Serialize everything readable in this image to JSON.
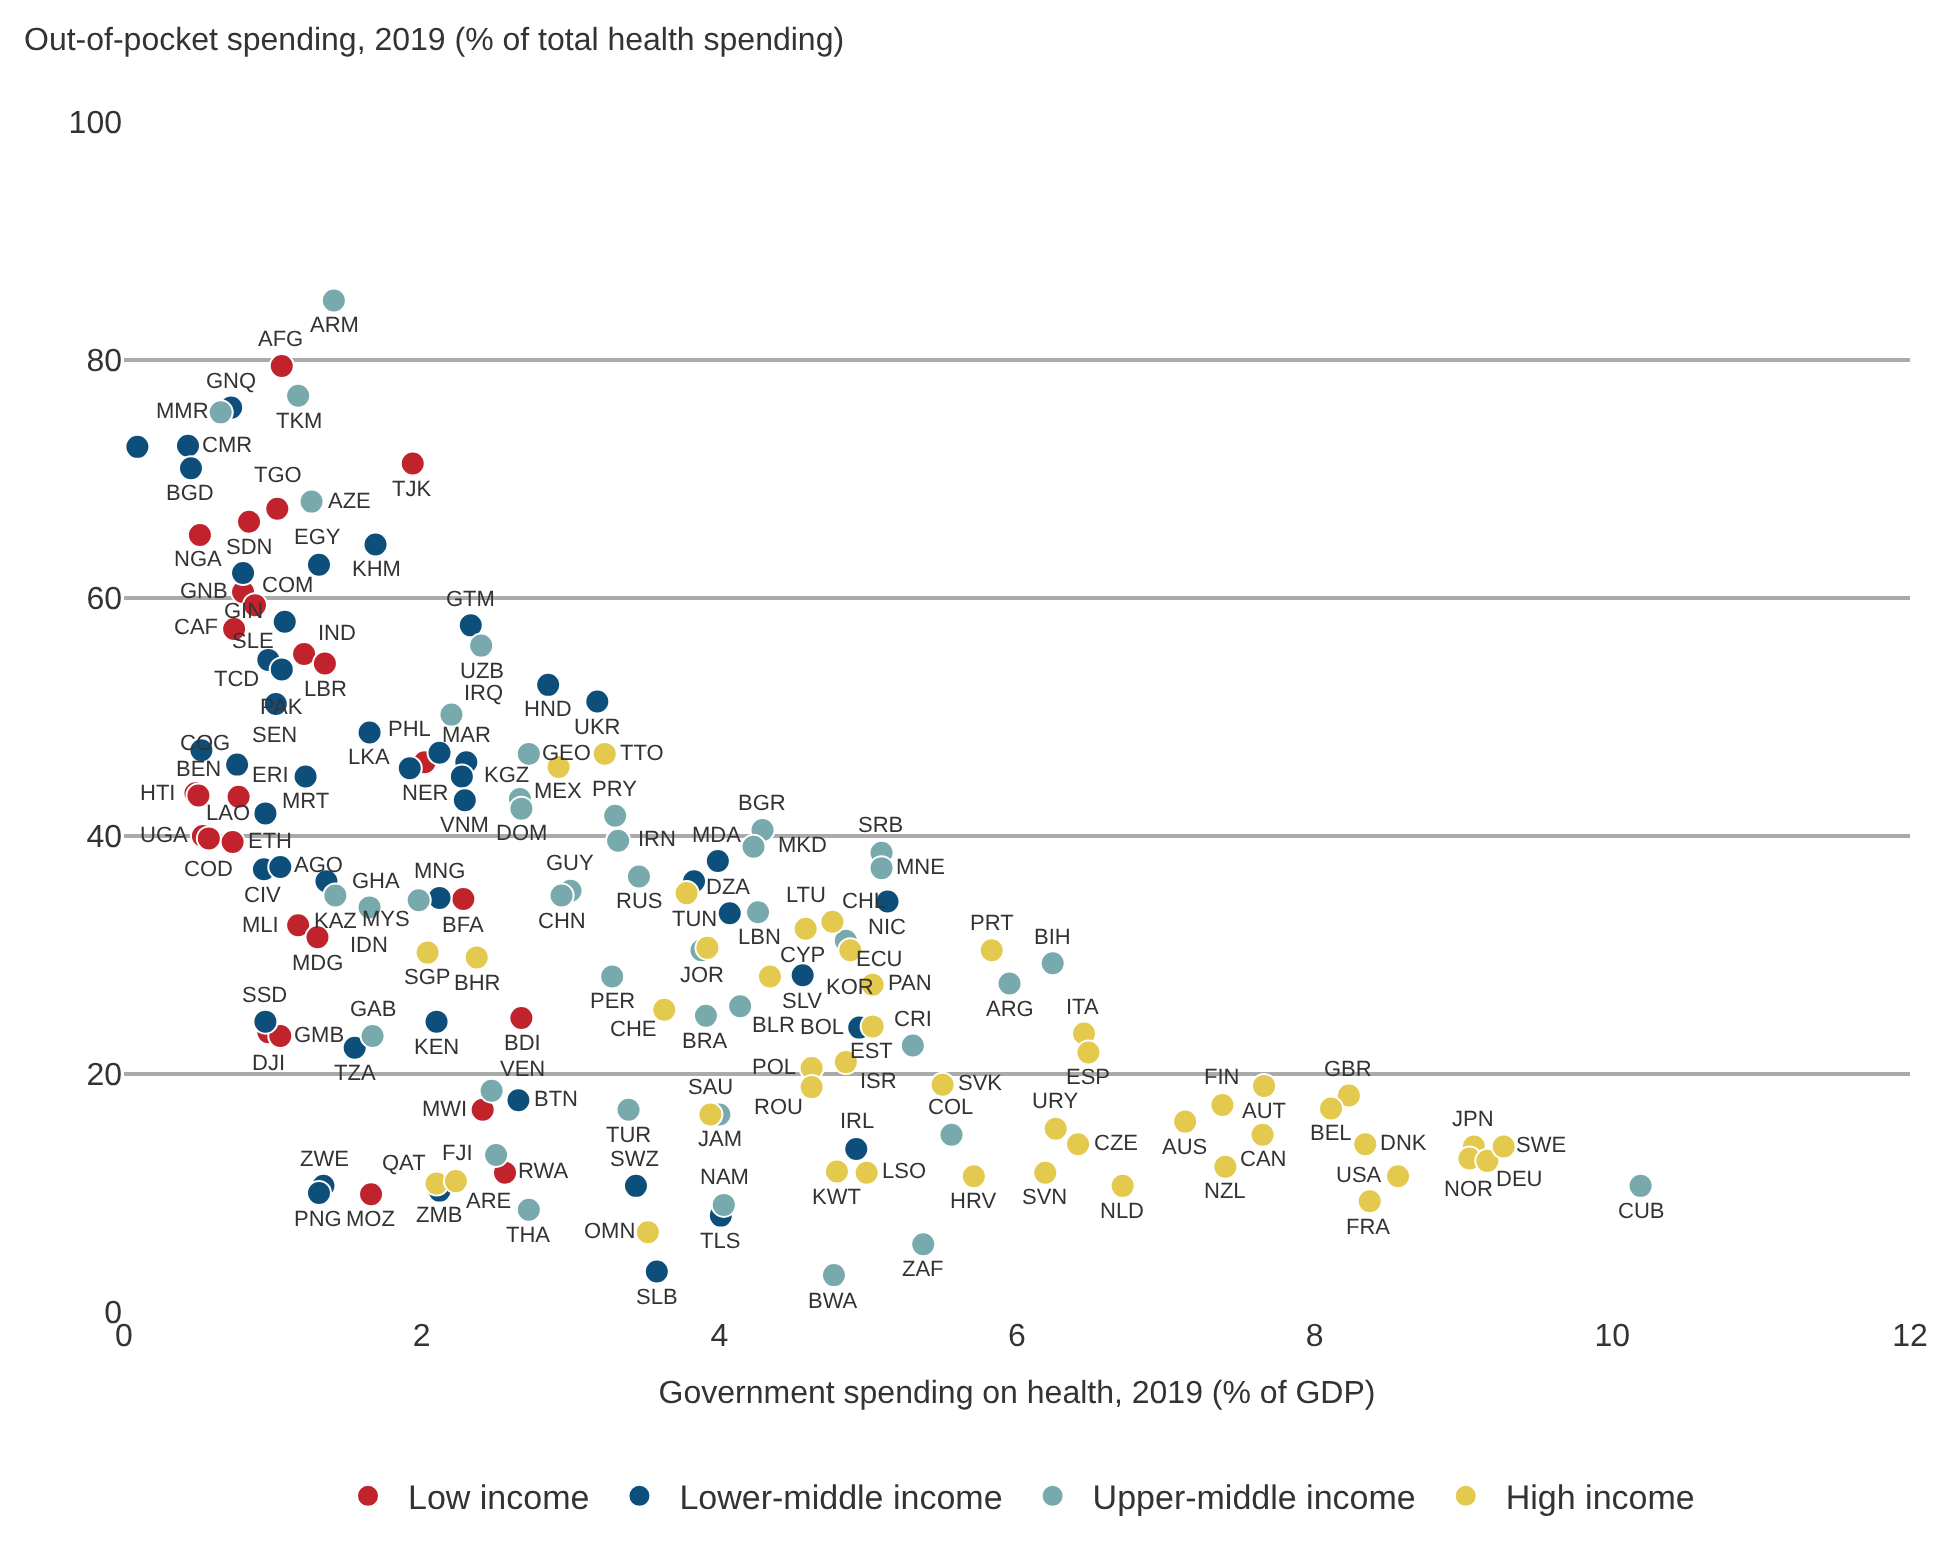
{
  "chart_data": {
    "type": "scatter",
    "ylabel": "Out-of-pocket spending, 2019 (% of total health spending)",
    "xlabel": "Government spending on health, 2019 (% of GDP)",
    "xlim": [
      0,
      12
    ],
    "ylim": [
      0,
      100
    ],
    "xticks": [
      0,
      2,
      4,
      6,
      8,
      10,
      12
    ],
    "yticks": [
      0,
      20,
      40,
      60,
      80,
      100
    ],
    "grid": "y",
    "legend": "bottom",
    "marker": "circle",
    "series": [
      {
        "name": "Low income",
        "color": "#c0232c",
        "x": [
          1.06,
          1.94,
          1.03,
          0.84,
          0.51,
          0.8,
          0.88,
          0.74,
          1.21,
          1.35,
          2.02,
          0.48,
          0.5,
          0.77,
          0.53,
          0.57,
          0.73,
          1.17,
          1.3,
          2.28,
          0.97,
          1.05,
          2.67,
          2.41,
          2.56,
          1.66
        ],
        "values": [
          79.5,
          71.3,
          67.5,
          66.4,
          65.3,
          60.5,
          59.4,
          57.4,
          55.3,
          54.5,
          46.2,
          43.6,
          43.4,
          43.3,
          40.0,
          39.8,
          39.5,
          32.5,
          31.5,
          34.7,
          23.5,
          23.2,
          24.7,
          17.0,
          11.7,
          9.9
        ],
        "value_labels": [
          "AFG",
          "TJK",
          "TGO",
          "SDN",
          "NGA",
          "GNB",
          "COM",
          "CAF",
          "IND",
          "LBR",
          "NER",
          "HTI",
          "BEN",
          "ERI",
          "UGA",
          "COD",
          "ETH",
          "MLI",
          "MDG",
          "BFA",
          "DJI",
          "GMB",
          "BDI",
          "MWI",
          "RWA",
          "MOZ"
        ]
      },
      {
        "name": "Lower-middle income",
        "color": "#0d4f7a",
        "x": [
          0.72,
          0.43,
          0.09,
          0.45,
          1.69,
          1.31,
          0.8,
          1.08,
          2.33,
          0.97,
          1.06,
          1.02,
          2.85,
          3.18,
          0.52,
          0.76,
          1.22,
          0.95,
          1.65,
          1.92,
          2.12,
          2.3,
          2.27,
          2.29,
          0.94,
          1.05,
          1.36,
          2.12,
          0.95,
          1.55,
          2.1,
          2.65,
          1.34,
          1.31,
          2.12,
          3.44,
          3.58,
          4.01,
          3.99,
          3.83,
          4.07,
          4.56,
          4.94,
          5.13,
          4.92
        ],
        "values": [
          76.0,
          72.8,
          72.7,
          70.9,
          64.5,
          62.8,
          62.1,
          58.0,
          57.7,
          54.8,
          54.0,
          51.1,
          52.7,
          51.3,
          47.2,
          46.0,
          45.0,
          41.9,
          48.7,
          45.7,
          47.0,
          46.2,
          45.0,
          43.0,
          37.2,
          37.4,
          36.2,
          34.8,
          24.4,
          22.2,
          24.4,
          17.8,
          10.6,
          10.0,
          10.2,
          10.6,
          3.4,
          8.1,
          37.9,
          36.2,
          33.5,
          28.3,
          23.9,
          34.5,
          13.7
        ],
        "value_labels": [
          "GNQ",
          "CMR",
          null,
          "BGD",
          "KHM",
          "EGY",
          "GIN",
          "SLE",
          "GTM",
          "TCD",
          "PAK",
          "SEN",
          "HND",
          "UKR",
          null,
          "COG",
          "MRT",
          "LAO",
          "LKA",
          "PHL",
          null,
          "MAR",
          "KGZ",
          "VNM",
          "CIV",
          "AGO",
          "GHA",
          "MNG",
          "SSD",
          "TZA",
          "KEN",
          "BTN",
          "ZWE",
          "PNG",
          "ZMB",
          "SWZ",
          "SLB",
          "TLS",
          "MDA",
          "TUN",
          "DZA",
          "SLV",
          "BOL",
          "NIC",
          "IRL"
        ]
      },
      {
        "name": "Upper-middle income",
        "color": "#78a9ad",
        "x": [
          1.41,
          1.17,
          0.65,
          1.26,
          2.4,
          2.2,
          2.72,
          2.66,
          2.67,
          3.3,
          3.32,
          3.46,
          1.42,
          1.65,
          1.98,
          3.0,
          2.94,
          1.67,
          3.28,
          2.47,
          2.5,
          2.72,
          3.39,
          4.0,
          4.03,
          4.29,
          4.23,
          4.26,
          3.88,
          3.91,
          4.14,
          4.85,
          5.3,
          5.09,
          5.09,
          5.95,
          6.24,
          5.56,
          4.77,
          5.37,
          10.19
        ],
        "values": [
          85.0,
          77.0,
          75.6,
          68.1,
          56.0,
          50.2,
          46.9,
          43.1,
          42.3,
          41.7,
          39.6,
          36.6,
          35.0,
          34.0,
          34.6,
          35.4,
          35.0,
          23.2,
          28.2,
          18.6,
          13.2,
          8.6,
          17.0,
          16.6,
          9.0,
          40.5,
          39.1,
          33.6,
          30.4,
          24.9,
          25.7,
          31.2,
          22.4,
          38.6,
          37.3,
          27.6,
          29.3,
          14.9,
          3.1,
          5.7,
          10.6
        ],
        "value_labels": [
          "ARM",
          "TKM",
          "MMR",
          "AZE",
          "UZB",
          "IRQ",
          "GEO",
          null,
          "DOM",
          "PRY",
          "IRN",
          "RUS",
          "KAZ",
          "IDN",
          "MYS",
          "GUY",
          "CHN",
          "GAB",
          "PER",
          "VEN",
          "FJI",
          "THA",
          "TUR",
          "JAM",
          "NAM",
          "BGR",
          "MKD",
          "LBN",
          "JOR",
          "BRA",
          "BLR",
          "ECU",
          "CRI",
          "SRB",
          "MNE",
          "ARG",
          "BIH",
          "COL",
          "BWA",
          "ZAF",
          "CUB"
        ]
      },
      {
        "name": "High income",
        "color": "#e3c94d",
        "x": [
          2.92,
          3.23,
          2.04,
          2.37,
          2.1,
          2.23,
          3.78,
          3.92,
          3.63,
          4.34,
          4.58,
          4.76,
          4.88,
          5.03,
          5.03,
          4.62,
          4.85,
          4.62,
          3.94,
          3.52,
          4.79,
          4.99,
          5.83,
          5.5,
          5.71,
          6.19,
          6.26,
          6.41,
          6.45,
          6.48,
          6.71,
          7.13,
          7.38,
          7.66,
          7.65,
          7.4,
          8.23,
          8.11,
          8.34,
          8.37,
          8.56,
          9.07,
          9.04,
          9.16,
          9.27
        ],
        "values": [
          45.8,
          46.9,
          30.2,
          29.8,
          10.8,
          11.0,
          35.2,
          30.6,
          25.4,
          28.2,
          32.2,
          32.8,
          30.4,
          27.5,
          24.0,
          20.5,
          21.0,
          18.9,
          16.6,
          6.7,
          11.8,
          11.7,
          30.4,
          19.1,
          11.4,
          11.7,
          15.4,
          14.1,
          23.4,
          21.8,
          10.6,
          16.0,
          17.4,
          19.0,
          14.9,
          12.2,
          18.2,
          17.1,
          14.1,
          9.3,
          11.4,
          13.9,
          12.9,
          12.7,
          13.9
        ],
        "value_labels": [
          "MEX",
          "TTO",
          "SGP",
          "BHR",
          "QAT",
          "ARE",
          null,
          null,
          "CHE",
          "CYP",
          "LTU",
          "CHL",
          "KOR",
          "PAN",
          "EST",
          "POL",
          "ISR",
          "ROU",
          "SAU",
          "OMN",
          "KWT",
          "LSO",
          "PRT",
          "SVK",
          "HRV",
          "SVN",
          "URY",
          "CZE",
          "ITA",
          "ESP",
          "NLD",
          "AUS",
          "FIN",
          "AUT",
          "CAN",
          "NZL",
          "GBR",
          "BEL",
          "DNK",
          "FRA",
          "USA",
          "JPN",
          "NOR",
          "DEU",
          "SWE"
        ]
      }
    ]
  }
}
